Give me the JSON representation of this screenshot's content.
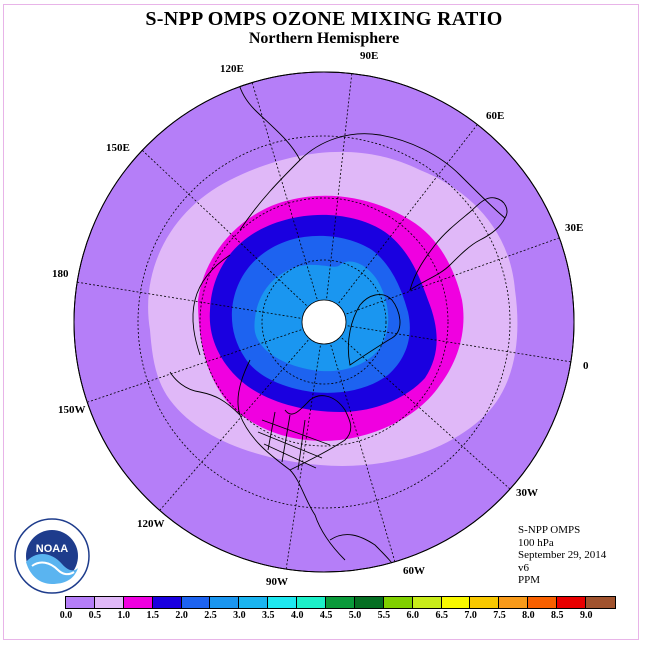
{
  "title": "S-NPP OMPS OZONE MIXING RATIO",
  "subtitle": "Northern Hemisphere",
  "longitude_labels": {
    "e90": "90E",
    "e60": "60E",
    "e30": "30E",
    "zero": "0",
    "w30": "30W",
    "w60": "60W",
    "w90": "90W",
    "w120": "120W",
    "w150": "150W",
    "d180": "180",
    "e150": "150E",
    "e120": "120E"
  },
  "info": {
    "instrument": "S-NPP OMPS",
    "level": "100 hPa",
    "date": "September 29, 2014",
    "version": "v6",
    "units": "PPM"
  },
  "logo_text": "NOAA",
  "colorbar": {
    "ticks": [
      "0.0",
      "0.5",
      "1.0",
      "1.5",
      "2.0",
      "2.5",
      "3.0",
      "3.5",
      "4.0",
      "4.5",
      "5.0",
      "5.5",
      "6.0",
      "6.5",
      "7.0",
      "7.5",
      "8.0",
      "8.5",
      "9.0"
    ],
    "colors": [
      "#b57ef8",
      "#e0b8f8",
      "#f000e0",
      "#1a00e0",
      "#1d63f0",
      "#1a96f0",
      "#1ab4f0",
      "#1ee8f0",
      "#1cf0c8",
      "#0a9a3a",
      "#056f22",
      "#80d000",
      "#c8ec1a",
      "#f8f800",
      "#f8c800",
      "#f89a1a",
      "#f86000",
      "#e80000",
      "#a0522d"
    ]
  },
  "map_colors": {
    "background_disk": "#b57ef8",
    "band_0_5": "#e0b8f8",
    "band_1_0": "#f000e0",
    "band_1_5": "#1a00e0",
    "band_2_0": "#1d63f0",
    "band_2_5": "#1a96f0",
    "pole_missing": "#ffffff"
  }
}
